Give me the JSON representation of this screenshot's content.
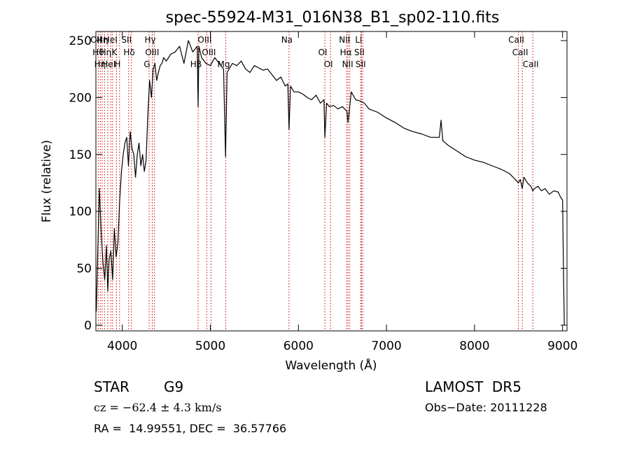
{
  "chart_data": {
    "type": "line",
    "title": "spec-55924-M31_016N38_B1_sp02-110.fits",
    "xlabel": "Wavelength (Å)",
    "ylabel": "Flux (relative)",
    "xlim": [
      3700,
      9050
    ],
    "ylim": [
      -5,
      258
    ],
    "x_ticks": [
      4000,
      5000,
      6000,
      7000,
      8000,
      9000
    ],
    "y_ticks": [
      0,
      50,
      100,
      150,
      200,
      250
    ],
    "grid": false,
    "line_color": "#000000",
    "marker_color": "#cc0000",
    "series": [
      {
        "x": [
          3705,
          3720,
          3740,
          3760,
          3780,
          3800,
          3820,
          3835,
          3850,
          3870,
          3890,
          3910,
          3930,
          3950,
          3970,
          3990,
          4010,
          4030,
          4050,
          4070,
          4090,
          4110,
          4130,
          4150,
          4170,
          4190,
          4210,
          4230,
          4250,
          4270,
          4290,
          4310,
          4330,
          4350,
          4370,
          4390,
          4410,
          4430,
          4450,
          4470,
          4500,
          4550,
          4600,
          4650,
          4700,
          4750,
          4800,
          4850,
          4861,
          4870,
          4900,
          4950,
          5000,
          5050,
          5100,
          5150,
          5172,
          5190,
          5250,
          5300,
          5350,
          5400,
          5450,
          5500,
          5550,
          5600,
          5650,
          5700,
          5750,
          5800,
          5850,
          5880,
          5893,
          5910,
          5950,
          6000,
          6050,
          6100,
          6150,
          6200,
          6250,
          6290,
          6300,
          6320,
          6350,
          6400,
          6450,
          6500,
          6550,
          6563,
          6580,
          6600,
          6650,
          6700,
          6750,
          6800,
          6900,
          7000,
          7100,
          7200,
          7300,
          7400,
          7500,
          7550,
          7600,
          7620,
          7640,
          7700,
          7800,
          7900,
          8000,
          8100,
          8200,
          8300,
          8400,
          8498,
          8520,
          8542,
          8560,
          8600,
          8640,
          8662,
          8680,
          8720,
          8760,
          8800,
          8850,
          8900,
          8950,
          8980,
          9000,
          9010,
          9020
        ],
        "y": [
          12,
          60,
          120,
          82,
          55,
          40,
          70,
          30,
          58,
          65,
          40,
          85,
          60,
          72,
          110,
          135,
          150,
          160,
          165,
          140,
          170,
          155,
          150,
          130,
          150,
          160,
          140,
          150,
          135,
          145,
          185,
          215,
          200,
          225,
          230,
          215,
          222,
          228,
          230,
          235,
          232,
          238,
          240,
          245,
          230,
          250,
          240,
          245,
          192,
          245,
          235,
          230,
          228,
          235,
          230,
          225,
          148,
          222,
          230,
          228,
          232,
          225,
          222,
          228,
          226,
          224,
          225,
          220,
          215,
          218,
          210,
          212,
          172,
          210,
          205,
          205,
          203,
          200,
          198,
          202,
          195,
          198,
          165,
          195,
          192,
          193,
          190,
          192,
          188,
          178,
          190,
          205,
          198,
          197,
          195,
          190,
          187,
          182,
          178,
          173,
          170,
          168,
          165,
          165,
          165,
          180,
          162,
          158,
          153,
          148,
          145,
          143,
          140,
          137,
          133,
          125,
          128,
          120,
          130,
          125,
          122,
          118,
          120,
          122,
          118,
          120,
          115,
          118,
          117,
          112,
          110,
          45,
          0
        ]
      }
    ],
    "line_markers": [
      {
        "wavelength": 3727,
        "label": "OII"
      },
      {
        "wavelength": 3750,
        "label": "Hθ"
      },
      {
        "wavelength": 3771,
        "label": "Hη"
      },
      {
        "wavelength": 3798,
        "label": "Hη"
      },
      {
        "wavelength": 3835,
        "label": "Hη"
      },
      {
        "wavelength": 3869,
        "label": "HeI"
      },
      {
        "wavelength": 3889,
        "label": "HeI"
      },
      {
        "wavelength": 3934,
        "label": "K"
      },
      {
        "wavelength": 3969,
        "label": "H"
      },
      {
        "wavelength": 4072,
        "label": "SII"
      },
      {
        "wavelength": 4102,
        "label": "Hδ"
      },
      {
        "wavelength": 4304,
        "label": "G"
      },
      {
        "wavelength": 4340,
        "label": "Hγ"
      },
      {
        "wavelength": 4363,
        "label": "OIII"
      },
      {
        "wavelength": 4861,
        "label": "Hβ"
      },
      {
        "wavelength": 4959,
        "label": "OIII"
      },
      {
        "wavelength": 5007,
        "label": "OIII"
      },
      {
        "wavelength": 5175,
        "label": "Mg"
      },
      {
        "wavelength": 5893,
        "label": "Na"
      },
      {
        "wavelength": 6300,
        "label": "OI"
      },
      {
        "wavelength": 6364,
        "label": "OI"
      },
      {
        "wavelength": 6548,
        "label": "NII"
      },
      {
        "wavelength": 6563,
        "label": "Hα"
      },
      {
        "wavelength": 6583,
        "label": "NII"
      },
      {
        "wavelength": 6708,
        "label": "Li"
      },
      {
        "wavelength": 6716,
        "label": "SII"
      },
      {
        "wavelength": 6731,
        "label": "SII"
      },
      {
        "wavelength": 8498,
        "label": "CaII"
      },
      {
        "wavelength": 8542,
        "label": "CaII"
      },
      {
        "wavelength": 8662,
        "label": "CaII"
      }
    ]
  },
  "info": {
    "class_label": "STAR",
    "subclass": "G9",
    "survey": "LAMOST  DR5",
    "cz_text": "cz = −62.4 ± 4.3 km/s",
    "obs_date": "Obs−Date: 20111228",
    "coords": "RA =  14.99551, DEC =  36.57766"
  }
}
